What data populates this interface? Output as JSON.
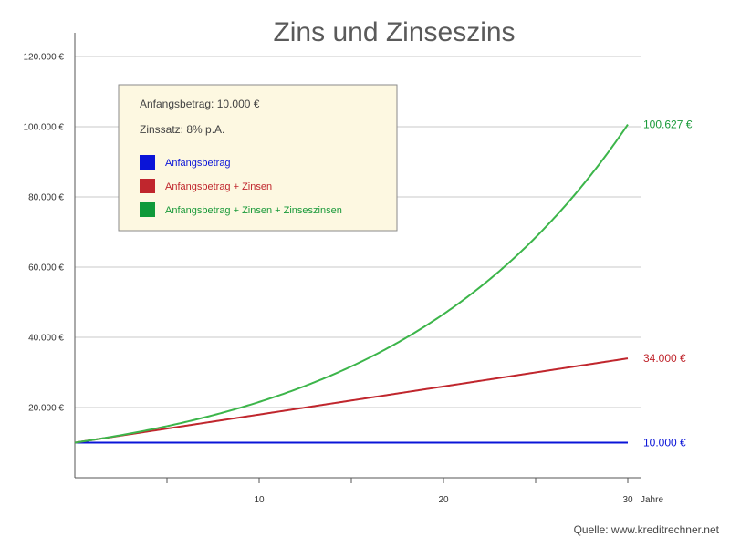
{
  "chart_data": {
    "type": "line",
    "title": "Zins und Zinseszins",
    "xlabel": "Jahre",
    "ylabel": "",
    "xlim": [
      0,
      30.3
    ],
    "ylim": [
      0,
      120000
    ],
    "x_ticks": [
      {
        "value": 5,
        "label": ""
      },
      {
        "value": 10,
        "label": "10"
      },
      {
        "value": 15,
        "label": ""
      },
      {
        "value": 20,
        "label": "20"
      },
      {
        "value": 25,
        "label": ""
      },
      {
        "value": 30,
        "label": "30"
      }
    ],
    "y_ticks": [
      {
        "value": 20000,
        "label": "20.000 €"
      },
      {
        "value": 40000,
        "label": "40.000 €"
      },
      {
        "value": 60000,
        "label": "60.000 €"
      },
      {
        "value": 80000,
        "label": "80.000 €"
      },
      {
        "value": 100000,
        "label": "100.000 €"
      },
      {
        "value": 120000,
        "label": "120.000 €"
      }
    ],
    "grid": true,
    "legend_position": "top-left",
    "info_box": {
      "lines": [
        "Anfangsbetrag: 10.000 €",
        "Zinssatz: 8% p.A."
      ]
    },
    "series": [
      {
        "name": "Anfangsbetrag",
        "color": "#0a14d8",
        "formula": "constant",
        "principal": 10000,
        "rate": 0.08,
        "x_end": 30,
        "end_label": "10.000 €"
      },
      {
        "name": "Anfangsbetrag + Zinsen",
        "color": "#c0262d",
        "formula": "simple",
        "principal": 10000,
        "rate": 0.08,
        "x_end": 30,
        "end_label": "34.000 €"
      },
      {
        "name": "Anfangsbetrag + Zinsen + Zinseszinsen",
        "color": "#1a9a3a",
        "legend_color": "#0f9a3a",
        "line_color": "#3cb54a",
        "formula": "compound",
        "principal": 10000,
        "rate": 0.08,
        "x_end": 30,
        "end_label": "100.627 €"
      }
    ],
    "source": "Quelle: www.kreditrechner.net"
  }
}
